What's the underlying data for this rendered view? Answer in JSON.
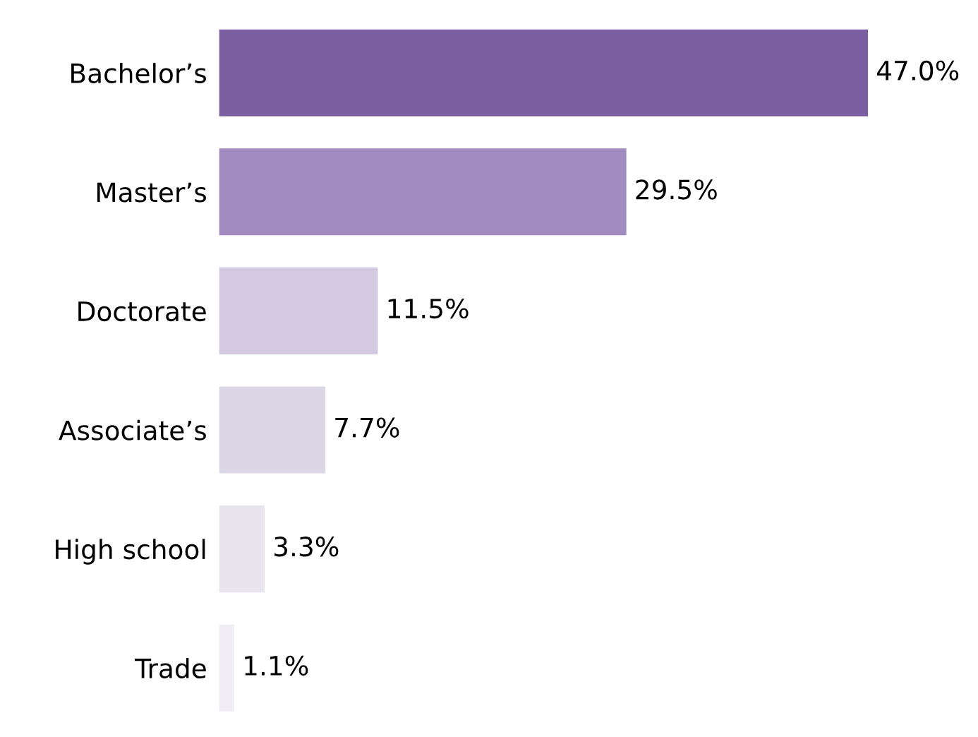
{
  "chart_data": {
    "type": "bar",
    "orientation": "horizontal",
    "categories": [
      "Bachelor’s",
      "Master’s",
      "Doctorate",
      "Associate’s",
      "High school",
      "Trade"
    ],
    "values": [
      47.0,
      29.5,
      11.5,
      7.7,
      3.3,
      1.1
    ],
    "colors": [
      "#7b5ea0",
      "#a18bc1",
      "#d3c9e1",
      "#dcd7e7",
      "#e8e5ee",
      "#efedf3"
    ],
    "value_labels": [
      "47.0%",
      "29.5%",
      "11.5%",
      "7.7%",
      "3.3%",
      "1.1%"
    ],
    "grid": false,
    "legend": false
  }
}
